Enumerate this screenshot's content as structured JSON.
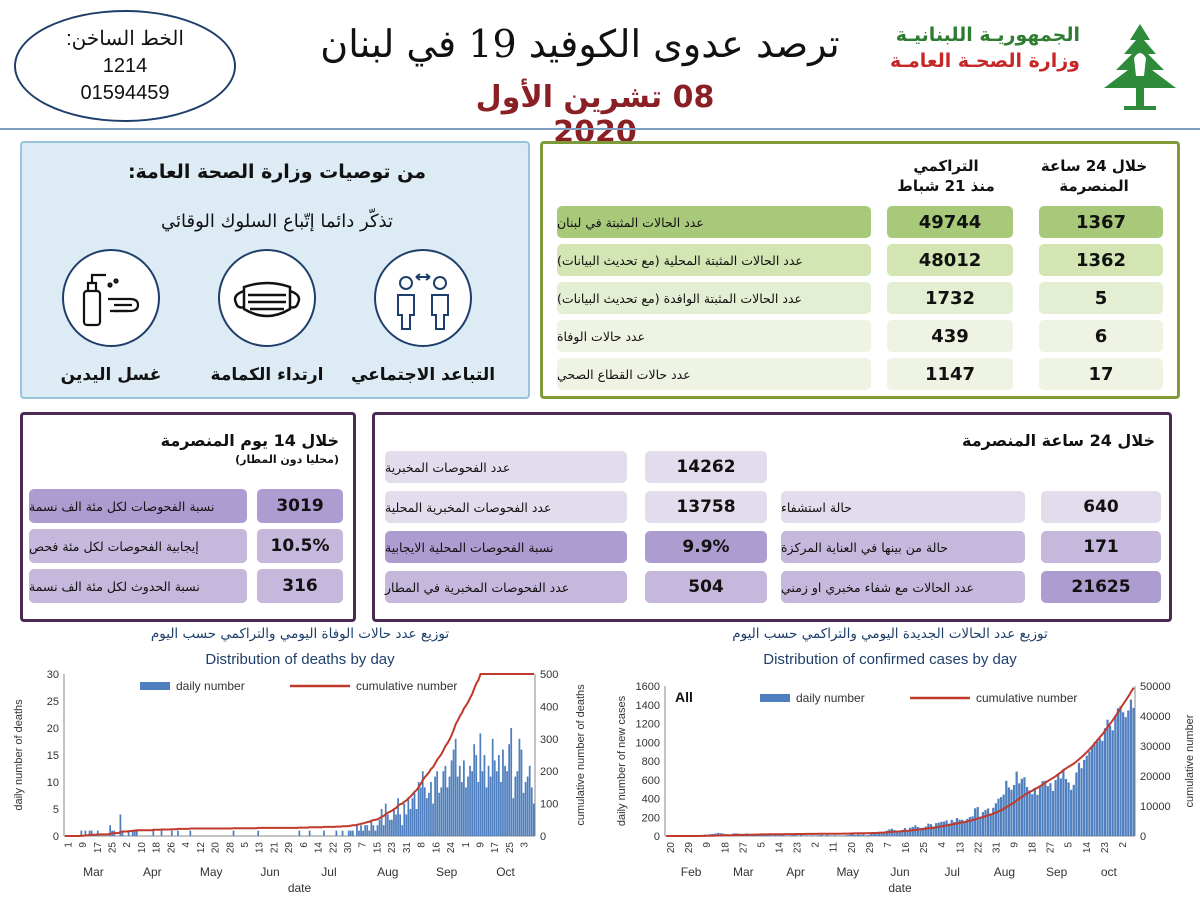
{
  "header": {
    "hotline_label": "الخط الساخن:",
    "hotline_1": "1214",
    "hotline_2": "01594459",
    "title": "ترصد عدوى الكوفيد 19 في لبنان",
    "date": "08 تشرين الأول 2020",
    "ministry_1": "الجمهوريـة اللبنانيـة",
    "ministry_2": "وزارة الصحـة العامـة"
  },
  "recommendations": {
    "title": "من توصيات وزارة الصحة العامة:",
    "subtitle": "تذكّر دائما إتّباع السلوك الوقائي",
    "items": [
      {
        "label": "التباعد الاجتماعي",
        "icon": "social-distancing-icon"
      },
      {
        "label": "ارتداء الكمامة",
        "icon": "face-mask-icon"
      },
      {
        "label": "غسل اليدين",
        "icon": "hand-washing-icon"
      }
    ]
  },
  "summary": {
    "col_24h": "خلال 24 ساعة المنصرمة",
    "col_24h_l1": "خلال 24 ساعة",
    "col_24h_l2": "المنصرمة",
    "col_cum_l1": "التراكمي",
    "col_cum_l2": "منذ 21 شباط",
    "rows": [
      {
        "label": "عدد الحالات المثبتة في لبنان",
        "cumulative": "49744",
        "daily": "1367"
      },
      {
        "label": "عدد الحالات المثبتة المحلية (مع تحديث البيانات)",
        "cumulative": "48012",
        "daily": "1362"
      },
      {
        "label": "عدد الحالات المثبتة الوافدة (مع تحديث البيانات)",
        "cumulative": "1732",
        "daily": "5"
      },
      {
        "label": "عدد حالات الوفاة",
        "cumulative": "439",
        "daily": "6"
      },
      {
        "label": "عدد حالات القطاع الصحي",
        "cumulative": "1147",
        "daily": "17"
      }
    ]
  },
  "fourteen_days": {
    "title": "خلال 14 يوم المنصرمة",
    "subtitle": "(محليا دون المطار)",
    "rows": [
      {
        "label": "نسبة الفحوصات لكل مئة الف نسمة",
        "value": "3019"
      },
      {
        "label": "إيجابية الفحوصات لكل مئة فحص",
        "value": "10.5%"
      },
      {
        "label": "نسبة الحدوث لكل مئة الف نسمة",
        "value": "316"
      }
    ]
  },
  "last24": {
    "title": "خلال 24 ساعة المنصرمة",
    "tests": [
      {
        "label": "عدد الفحوصات المخبرية",
        "value": "14262"
      },
      {
        "label": "عدد الفحوصات المخبرية المحلية",
        "value": "13758"
      },
      {
        "label": "نسبة الفحوصات المحلية الايجابية",
        "value": "9.9%"
      },
      {
        "label": "عدد الفحوصات المخبرية في المطار",
        "value": "504"
      }
    ],
    "hospital": [
      {
        "label": "حالة استشفاء",
        "value": "640"
      },
      {
        "label": "حالة من بينها في العناية المركزة",
        "value": "171"
      },
      {
        "label": "عدد الحالات مع شفاء مخبري او زمني",
        "value": "21625"
      }
    ]
  },
  "colors": {
    "bar": "#4f7fbf",
    "cumulative_line": "#c0392b",
    "green_pill": "#d3e5b3",
    "green_pill_dark": "#a8c97a",
    "purple_pill_light": "#e3dcec",
    "purple_pill": "#c5b8dc",
    "purple_pill_dark": "#ad9ccf"
  },
  "chart_data": [
    {
      "type": "bar",
      "title_ar": "توزيع عدد حالات  الوفاة اليومي والتراكمي حسب اليوم",
      "title": "Distribution of deaths by day",
      "xlabel": "date",
      "ylabel": "daily number of deaths",
      "y2label": "cumulative number of deaths",
      "legend": [
        "daily number",
        "cumulative number"
      ],
      "ylim": [
        0,
        30
      ],
      "y2lim": [
        0,
        500
      ],
      "yticks": [
        "0",
        "5",
        "10",
        "15",
        "20",
        "25",
        "30"
      ],
      "y2ticks": [
        "0",
        "100",
        "200",
        "300",
        "400",
        "500"
      ],
      "xticks": [
        "1",
        "9",
        "17",
        "25",
        "2",
        "10",
        "18",
        "26",
        "4",
        "12",
        "20",
        "28",
        "5",
        "13",
        "21",
        "29",
        "6",
        "14",
        "22",
        "30",
        "7",
        "15",
        "23",
        "31",
        "8",
        "16",
        "24",
        "1",
        "9",
        "17",
        "25",
        "3"
      ],
      "months": [
        "Mar",
        "Apr",
        "May",
        "Jun",
        "Jul",
        "Aug",
        "Sep",
        "Oct"
      ],
      "daily": [
        0,
        0,
        0,
        0,
        0,
        0,
        0,
        0,
        1,
        0,
        1,
        0,
        1,
        1,
        0,
        0,
        1,
        0,
        0,
        0,
        0,
        0,
        2,
        1,
        1,
        0,
        0,
        4,
        1,
        0,
        0,
        1,
        0,
        1,
        1,
        1,
        0,
        0,
        0,
        0,
        0,
        0,
        0,
        1,
        0,
        0,
        0,
        1,
        0,
        0,
        0,
        0,
        1,
        0,
        0,
        1,
        0,
        0,
        0,
        0,
        0,
        1,
        0,
        0,
        0,
        0,
        0,
        0,
        0,
        0,
        0,
        0,
        0,
        0,
        0,
        0,
        0,
        0,
        0,
        0,
        0,
        0,
        1,
        0,
        0,
        0,
        0,
        0,
        0,
        0,
        0,
        0,
        0,
        0,
        1,
        0,
        0,
        0,
        0,
        0,
        0,
        0,
        0,
        0,
        0,
        0,
        0,
        0,
        0,
        0,
        0,
        0,
        0,
        0,
        1,
        0,
        0,
        0,
        0,
        1,
        0,
        0,
        0,
        0,
        0,
        0,
        1,
        0,
        0,
        0,
        0,
        0,
        1,
        0,
        0,
        1,
        0,
        0,
        1,
        1,
        1,
        0,
        2,
        1,
        2,
        1,
        2,
        2,
        1,
        3,
        2,
        1,
        2,
        3,
        5,
        2,
        6,
        4,
        3,
        3,
        5,
        4,
        7,
        4,
        2,
        6,
        4,
        7,
        5,
        7,
        8,
        5,
        10,
        9,
        12,
        9,
        7,
        8,
        10,
        6,
        11,
        12,
        8,
        9,
        12,
        13,
        9,
        11,
        14,
        16,
        18,
        11,
        13,
        10,
        14,
        9,
        11,
        13,
        12,
        17,
        15,
        10,
        19,
        12,
        15,
        9,
        13,
        11,
        18,
        14,
        12,
        15,
        10,
        16,
        13,
        12,
        17,
        20,
        7,
        11,
        12,
        18,
        16,
        8,
        10,
        11,
        13,
        9,
        6
      ]
    },
    {
      "type": "bar",
      "title_ar": "توزيع عدد الحالات الجديدة اليومي والتراكمي حسب اليوم",
      "title": "Distribution of confirmed cases by day",
      "label": "All",
      "xlabel": "date",
      "ylabel": "daily number of new cases",
      "y2label": "cumulative number",
      "legend": [
        "daily number",
        "cumulative number"
      ],
      "ylim": [
        0,
        1600
      ],
      "y2lim": [
        0,
        50000
      ],
      "yticks": [
        "0",
        "200",
        "400",
        "600",
        "800",
        "1000",
        "1200",
        "1400",
        "1600"
      ],
      "y2ticks": [
        "0",
        "10000",
        "20000",
        "30000",
        "40000",
        "50000"
      ],
      "xticks": [
        "20",
        "29",
        "9",
        "18",
        "27",
        "5",
        "14",
        "23",
        "2",
        "11",
        "20",
        "29",
        "7",
        "16",
        "25",
        "4",
        "13",
        "22",
        "31",
        "9",
        "18",
        "27",
        "5",
        "14",
        "23",
        "2"
      ],
      "months": [
        "Feb",
        "Mar",
        "Apr",
        "May",
        "Jun",
        "Jul",
        "Aug",
        "Sep",
        "oct"
      ],
      "daily": [
        1,
        0,
        0,
        0,
        0,
        0,
        0,
        0,
        0,
        2,
        3,
        5,
        3,
        8,
        10,
        15,
        14,
        20,
        22,
        27,
        33,
        30,
        25,
        20,
        18,
        16,
        28,
        29,
        25,
        18,
        12,
        27,
        20,
        14,
        10,
        17,
        24,
        28,
        15,
        10,
        12,
        6,
        13,
        8,
        10,
        14,
        7,
        5,
        9,
        16,
        10,
        6,
        12,
        6,
        8,
        3,
        7,
        5,
        6,
        9,
        12,
        6,
        13,
        7,
        5,
        9,
        6,
        3,
        4,
        8,
        9,
        29,
        36,
        11,
        20,
        14,
        26,
        9,
        13,
        22,
        29,
        33,
        40,
        37,
        43,
        57,
        71,
        77,
        63,
        55,
        45,
        66,
        85,
        64,
        88,
        97,
        114,
        96,
        86,
        88,
        101,
        132,
        126,
        101,
        137,
        142,
        152,
        154,
        166,
        133,
        172,
        152,
        192,
        175,
        173,
        161,
        183,
        203,
        211,
        295,
        309,
        207,
        255,
        277,
        294,
        239,
        301,
        349,
        398,
        415,
        442,
        589,
        518,
        493,
        544,
        687,
        562,
        611,
        627,
        522,
        487,
        446,
        513,
        439,
        521,
        586,
        589,
        532,
        564,
        481,
        598,
        655,
        614,
        716,
        608,
        571,
        493,
        546,
        678,
        781,
        723,
        812,
        857,
        902,
        951,
        1001,
        1010,
        1038,
        1015,
        1149,
        1241,
        1176,
        1127,
        1284,
        1363,
        1386,
        1320,
        1268,
        1339,
        1455,
        1367
      ]
    }
  ]
}
